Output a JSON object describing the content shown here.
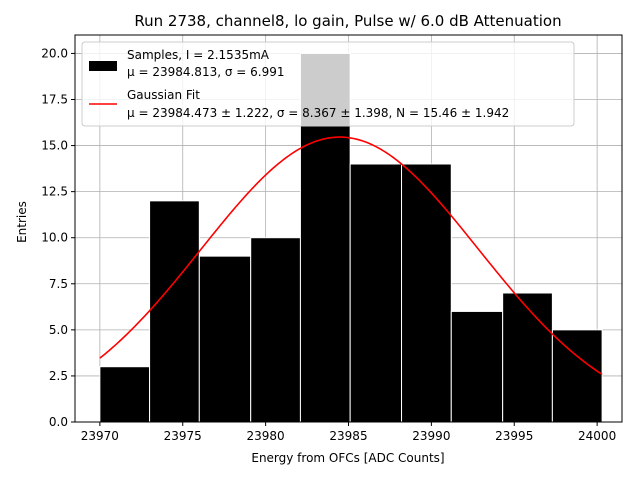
{
  "chart_data": {
    "type": "bar",
    "title": "Run 2738, channel8, lo gain, Pulse w/ 6.0 dB Attenuation",
    "xlabel": "Energy from OFCs [ADC Counts]",
    "ylabel": "Entries",
    "xlim": [
      23968.5,
      24001.5
    ],
    "ylim": [
      0,
      21
    ],
    "x_ticks": [
      23970,
      23975,
      23980,
      23985,
      23990,
      23995,
      24000
    ],
    "x_tick_labels": [
      "23970",
      "23975",
      "23980",
      "23985",
      "23990",
      "23995",
      "24000"
    ],
    "y_ticks": [
      0,
      2.5,
      5,
      7.5,
      10,
      12.5,
      15,
      17.5,
      20
    ],
    "y_tick_labels": [
      "0.0",
      "2.5",
      "5.0",
      "7.5",
      "10.0",
      "12.5",
      "15.0",
      "17.5",
      "20.0"
    ],
    "grid": true,
    "legend_position": "top-left",
    "bin_edges": [
      23970.0,
      23973.0,
      23976.0,
      23979.1,
      23982.1,
      23985.1,
      23988.2,
      23991.2,
      23994.3,
      23997.3,
      24000.3
    ],
    "values": [
      3,
      12,
      9,
      10,
      20,
      14,
      14,
      6,
      7,
      5
    ],
    "bar_color": "#000000",
    "bar_edge_color": "#ffffff",
    "fit": {
      "name": "Gaussian Fit",
      "mu": 23984.473,
      "sigma": 8.367,
      "N": 15.46,
      "color": "#ff0000"
    },
    "legend": [
      {
        "kind": "patch",
        "color": "#000000",
        "line1": "Samples, I = 2.1535mA",
        "line2": "μ = 23984.813, σ = 6.991"
      },
      {
        "kind": "line",
        "color": "#ff0000",
        "line1": "Gaussian Fit",
        "line2": "μ = 23984.473 ± 1.222, σ = 8.367 ± 1.398, N = 15.46 ± 1.942"
      }
    ]
  }
}
